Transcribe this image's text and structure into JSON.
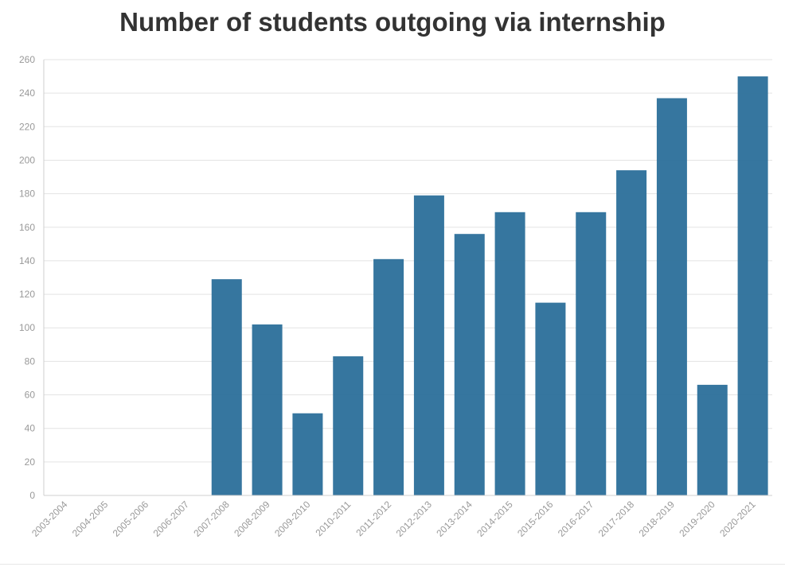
{
  "chart_data": {
    "type": "bar",
    "title": "Number of students outgoing via internship",
    "xlabel": "",
    "ylabel": "",
    "categories": [
      "2003-2004",
      "2004-2005",
      "2005-2006",
      "2006-2007",
      "2007-2008",
      "2008-2009",
      "2009-2010",
      "2010-2011",
      "2011-2012",
      "2012-2013",
      "2013-2014",
      "2014-2015",
      "2015-2016",
      "2016-2017",
      "2017-2018",
      "2018-2019",
      "2019-2020",
      "2020-2021"
    ],
    "values": [
      0,
      0,
      0,
      0,
      129,
      102,
      49,
      83,
      141,
      179,
      156,
      169,
      115,
      169,
      194,
      237,
      66,
      250
    ],
    "ylim": [
      0,
      260
    ],
    "yticks": [
      0,
      20,
      40,
      60,
      80,
      100,
      120,
      140,
      160,
      180,
      200,
      220,
      240,
      260
    ],
    "grid": true,
    "legend": "none",
    "bar_color": "#2e709b"
  }
}
